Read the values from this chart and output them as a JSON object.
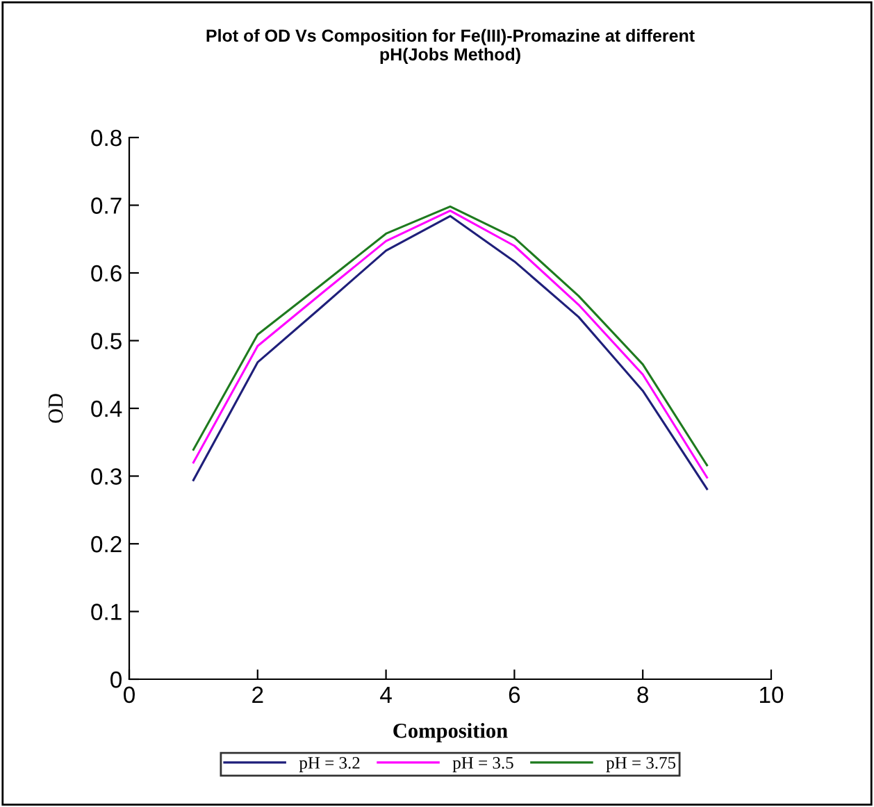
{
  "chart_data": {
    "type": "line",
    "title": "Plot of OD Vs Composition for Fe(III)-Promazine at different\npH(Jobs Method)",
    "xlabel": "Composition",
    "ylabel": "OD",
    "x": [
      1,
      2,
      3,
      4,
      5,
      6,
      7,
      8,
      9
    ],
    "series": [
      {
        "name": "pH = 3.2",
        "color": "#1f1f7a",
        "values": [
          0.294,
          0.468,
          0.55,
          0.633,
          0.684,
          0.617,
          0.535,
          0.426,
          0.281
        ]
      },
      {
        "name": "pH = 3.5",
        "color": "#ff00ff",
        "values": [
          0.32,
          0.492,
          0.57,
          0.647,
          0.692,
          0.64,
          0.553,
          0.45,
          0.298
        ]
      },
      {
        "name": "pH = 3.75",
        "color": "#1e7a1e",
        "values": [
          0.339,
          0.509,
          0.583,
          0.658,
          0.698,
          0.652,
          0.566,
          0.465,
          0.316
        ]
      }
    ],
    "xlim": [
      0,
      10
    ],
    "xticks": [
      0,
      2,
      4,
      6,
      8,
      10
    ],
    "ylim": [
      0,
      0.8
    ],
    "yticks": [
      0,
      0.1,
      0.2,
      0.3,
      0.4,
      0.5,
      0.6,
      0.7,
      0.8
    ],
    "grid": false,
    "legend": "bottom",
    "marker": "none",
    "line_style": "solid"
  }
}
